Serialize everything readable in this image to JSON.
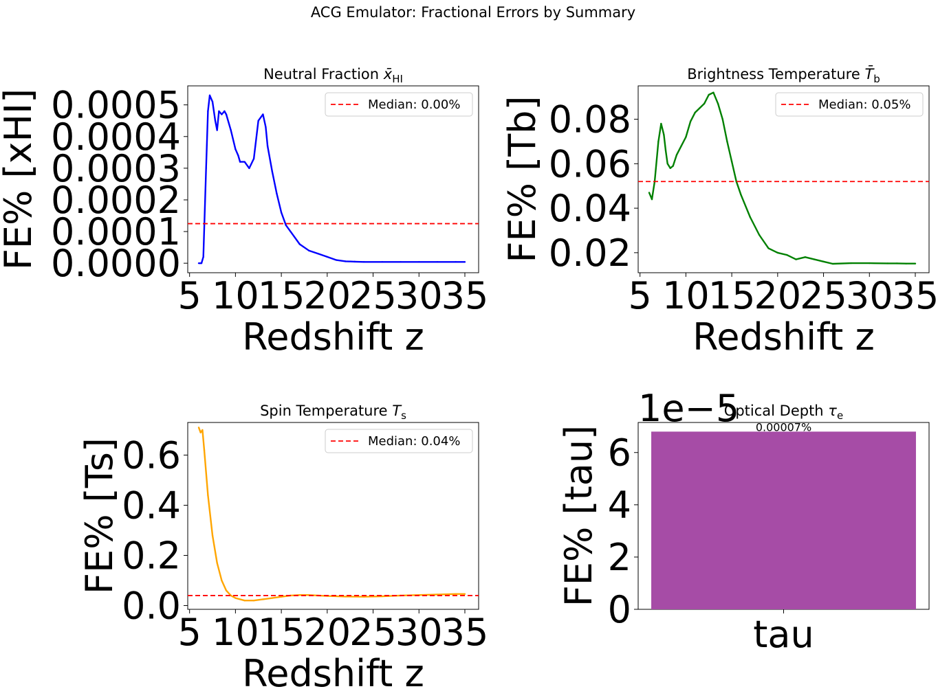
{
  "suptitle": "ACG Emulator: Fractional Errors by Summary",
  "chart_data": [
    {
      "type": "line",
      "id": "xhi",
      "title_text": "Neutral Fraction ",
      "title_math": "x̄",
      "title_sub": "HI",
      "xlabel": "Redshift z",
      "ylabel": "FE% [xHI]",
      "xlim": [
        4.8,
        36.5
      ],
      "ylim": [
        -3e-05,
        0.00056
      ],
      "xticks": [
        5,
        10,
        15,
        20,
        25,
        30,
        35
      ],
      "xtick_labels": [
        "5",
        "10",
        "15",
        "20",
        "25",
        "30",
        "35"
      ],
      "yticks": [
        0.0,
        0.0001,
        0.0002,
        0.0003,
        0.0004,
        0.0005
      ],
      "ytick_labels": [
        "0.0000",
        "0.0001",
        "0.0002",
        "0.0003",
        "0.0004",
        "0.0005"
      ],
      "color": "#0000ff",
      "median": 0.000125,
      "legend": "Median: 0.00%",
      "legend_pos": "top-right",
      "x": [
        6.0,
        6.3,
        6.5,
        6.8,
        7.0,
        7.2,
        7.5,
        7.8,
        8.0,
        8.2,
        8.5,
        8.8,
        9.0,
        9.5,
        10.0,
        10.3,
        10.5,
        11.0,
        11.5,
        12.0,
        12.5,
        13.0,
        13.3,
        13.5,
        14.0,
        14.5,
        15.0,
        15.5,
        16.0,
        17.0,
        18.0,
        19.0,
        20.0,
        21.0,
        22.0,
        23.0,
        24.0,
        26.0,
        28.0,
        30.0,
        32.0,
        34.0,
        35.0
      ],
      "values": [
        0.0,
        0.0,
        2e-05,
        0.0003,
        0.00048,
        0.00053,
        0.00051,
        0.00045,
        0.00042,
        0.00048,
        0.00047,
        0.00048,
        0.00047,
        0.00042,
        0.00036,
        0.00034,
        0.00032,
        0.00032,
        0.0003,
        0.00033,
        0.00045,
        0.00047,
        0.00043,
        0.00037,
        0.00029,
        0.00022,
        0.00016,
        0.00012,
        0.0001,
        6e-05,
        4e-05,
        3e-05,
        2e-05,
        1e-05,
        6e-06,
        5e-06,
        4e-06,
        4e-06,
        4e-06,
        4e-06,
        4e-06,
        4e-06,
        4e-06
      ]
    },
    {
      "type": "line",
      "id": "tb",
      "title_text": "Brightness Temperature ",
      "title_math": "T̄",
      "title_sub": "b",
      "xlabel": "Redshift z",
      "ylabel": "FE% [Tb]",
      "xlim": [
        4.8,
        36.5
      ],
      "ylim": [
        0.011,
        0.095
      ],
      "xticks": [
        5,
        10,
        15,
        20,
        25,
        30,
        35
      ],
      "xtick_labels": [
        "5",
        "10",
        "15",
        "20",
        "25",
        "30",
        "35"
      ],
      "yticks": [
        0.02,
        0.04,
        0.06,
        0.08
      ],
      "ytick_labels": [
        "0.02",
        "0.04",
        "0.06",
        "0.08"
      ],
      "color": "#008000",
      "median": 0.052,
      "legend": "Median: 0.05%",
      "legend_pos": "top-right",
      "x": [
        6.0,
        6.3,
        6.6,
        7.0,
        7.3,
        7.6,
        7.8,
        8.0,
        8.3,
        8.6,
        9.0,
        9.5,
        10.0,
        10.5,
        11.0,
        11.5,
        12.0,
        12.5,
        13.0,
        13.5,
        14.0,
        14.5,
        15.0,
        15.5,
        16.0,
        17.0,
        18.0,
        19.0,
        20.0,
        21.0,
        22.0,
        23.0,
        24.0,
        25.0,
        26.0,
        28.0,
        30.0,
        32.0,
        33.0,
        34.0,
        35.0
      ],
      "values": [
        0.047,
        0.044,
        0.052,
        0.07,
        0.078,
        0.073,
        0.066,
        0.06,
        0.058,
        0.059,
        0.064,
        0.068,
        0.072,
        0.079,
        0.083,
        0.085,
        0.087,
        0.091,
        0.092,
        0.087,
        0.08,
        0.07,
        0.061,
        0.052,
        0.046,
        0.036,
        0.028,
        0.022,
        0.02,
        0.019,
        0.017,
        0.018,
        0.017,
        0.016,
        0.015,
        0.0153,
        0.0153,
        0.0152,
        0.0152,
        0.0151,
        0.0151
      ]
    },
    {
      "type": "line",
      "id": "ts",
      "title_text": "Spin Temperature ",
      "title_math": "T",
      "title_sub": "s",
      "xlabel": "Redshift z",
      "ylabel": "FE% [Ts]",
      "xlim": [
        4.8,
        36.5
      ],
      "ylim": [
        -0.015,
        0.73
      ],
      "xticks": [
        5,
        10,
        15,
        20,
        25,
        30,
        35
      ],
      "xtick_labels": [
        "5",
        "10",
        "15",
        "20",
        "25",
        "30",
        "35"
      ],
      "yticks": [
        0.0,
        0.2,
        0.4,
        0.6
      ],
      "ytick_labels": [
        "0.0",
        "0.2",
        "0.4",
        "0.6"
      ],
      "color": "#ffa500",
      "median": 0.04,
      "legend": "Median: 0.04%",
      "legend_pos": "top-right",
      "x": [
        6.0,
        6.2,
        6.4,
        6.6,
        7.0,
        7.5,
        8.0,
        8.5,
        9.0,
        9.5,
        10.0,
        11.0,
        12.0,
        13.0,
        14.0,
        15.0,
        16.0,
        17.0,
        18.0,
        19.0,
        20.0,
        22.0,
        24.0,
        26.0,
        28.0,
        30.0,
        32.0,
        34.0,
        35.0
      ],
      "values": [
        0.71,
        0.69,
        0.7,
        0.62,
        0.44,
        0.28,
        0.17,
        0.1,
        0.06,
        0.04,
        0.03,
        0.02,
        0.02,
        0.025,
        0.03,
        0.035,
        0.04,
        0.042,
        0.042,
        0.04,
        0.038,
        0.036,
        0.035,
        0.037,
        0.04,
        0.042,
        0.044,
        0.046,
        0.046
      ]
    },
    {
      "type": "bar",
      "id": "tau",
      "title_text": "Optical Depth ",
      "title_math": "τ",
      "title_sub": "e",
      "ylabel": "FE% [tau]",
      "categories": [
        "tau"
      ],
      "values": [
        6.8
      ],
      "value_label": "0.00007%",
      "offset_text": "1e−5",
      "ylim": [
        0,
        7.15
      ],
      "yticks": [
        0,
        2,
        4,
        6
      ],
      "ytick_labels": [
        "0",
        "2",
        "4",
        "6"
      ],
      "color": "#a64ca6"
    }
  ]
}
